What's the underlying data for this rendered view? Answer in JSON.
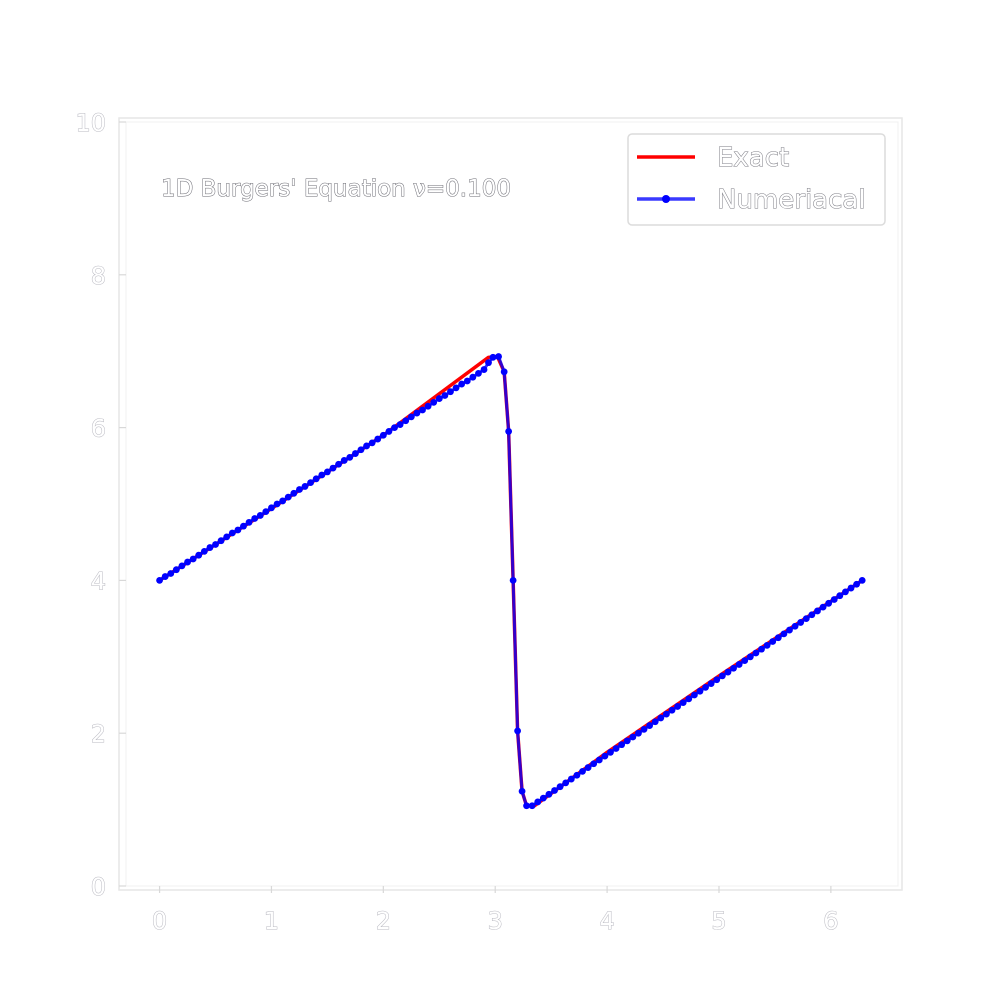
{
  "chart_data": {
    "type": "line",
    "title": "",
    "xlabel": "",
    "ylabel": "",
    "annotation": "1D Burgers' Equation ν=0.100",
    "xlim": [
      -0.3,
      6.6
    ],
    "ylim": [
      0,
      10
    ],
    "x_ticks": [
      "0",
      "1",
      "2",
      "3",
      "4",
      "5",
      "6"
    ],
    "y_ticks": [
      "0",
      "2",
      "4",
      "6",
      "8",
      "10"
    ],
    "grid": false,
    "legend": {
      "placement": "top-right",
      "entries": [
        "Exact",
        "Numeriacal"
      ]
    },
    "series": [
      {
        "name": "Exact",
        "color": "#ff0000",
        "marker": "none",
        "points": [
          [
            0.0,
            4.0
          ],
          [
            1.0,
            4.94
          ],
          [
            2.0,
            5.9
          ],
          [
            2.94,
            6.92
          ],
          [
            3.02,
            6.93
          ],
          [
            3.08,
            6.73
          ],
          [
            3.12,
            5.95
          ],
          [
            3.16,
            4.0
          ],
          [
            3.2,
            2.03
          ],
          [
            3.24,
            1.24
          ],
          [
            3.28,
            1.05
          ],
          [
            3.35,
            1.05
          ],
          [
            4.0,
            1.75
          ],
          [
            5.0,
            2.75
          ],
          [
            6.28,
            4.0
          ]
        ]
      },
      {
        "name": "Numeriacal",
        "color": "#0000ff",
        "marker": "dot",
        "points": [
          [
            0.0,
            4.0
          ],
          [
            0.05,
            4.05
          ],
          [
            0.1,
            4.09
          ],
          [
            0.15,
            4.14
          ],
          [
            0.2,
            4.19
          ],
          [
            0.25,
            4.24
          ],
          [
            0.3,
            4.28
          ],
          [
            0.35,
            4.33
          ],
          [
            0.4,
            4.38
          ],
          [
            0.45,
            4.43
          ],
          [
            0.5,
            4.47
          ],
          [
            0.55,
            4.52
          ],
          [
            0.6,
            4.57
          ],
          [
            0.65,
            4.62
          ],
          [
            0.7,
            4.66
          ],
          [
            0.75,
            4.71
          ],
          [
            0.8,
            4.76
          ],
          [
            0.85,
            4.81
          ],
          [
            0.9,
            4.85
          ],
          [
            0.95,
            4.9
          ],
          [
            1.0,
            4.95
          ],
          [
            1.05,
            5.0
          ],
          [
            1.1,
            5.04
          ],
          [
            1.15,
            5.09
          ],
          [
            1.2,
            5.14
          ],
          [
            1.25,
            5.19
          ],
          [
            1.3,
            5.23
          ],
          [
            1.35,
            5.28
          ],
          [
            1.4,
            5.33
          ],
          [
            1.45,
            5.38
          ],
          [
            1.5,
            5.42
          ],
          [
            1.55,
            5.47
          ],
          [
            1.6,
            5.52
          ],
          [
            1.65,
            5.57
          ],
          [
            1.7,
            5.61
          ],
          [
            1.75,
            5.66
          ],
          [
            1.8,
            5.71
          ],
          [
            1.85,
            5.76
          ],
          [
            1.9,
            5.8
          ],
          [
            1.95,
            5.85
          ],
          [
            2.0,
            5.9
          ],
          [
            2.05,
            5.95
          ],
          [
            2.1,
            6.0
          ],
          [
            2.15,
            6.04
          ],
          [
            2.2,
            6.09
          ],
          [
            2.25,
            6.14
          ],
          [
            2.3,
            6.19
          ],
          [
            2.35,
            6.23
          ],
          [
            2.4,
            6.28
          ],
          [
            2.45,
            6.33
          ],
          [
            2.5,
            6.38
          ],
          [
            2.55,
            6.42
          ],
          [
            2.6,
            6.47
          ],
          [
            2.65,
            6.52
          ],
          [
            2.7,
            6.57
          ],
          [
            2.75,
            6.61
          ],
          [
            2.8,
            6.66
          ],
          [
            2.85,
            6.71
          ],
          [
            2.9,
            6.76
          ],
          [
            2.94,
            6.85
          ],
          [
            2.98,
            6.92
          ],
          [
            3.03,
            6.93
          ],
          [
            3.08,
            6.73
          ],
          [
            3.12,
            5.95
          ],
          [
            3.16,
            4.0
          ],
          [
            3.2,
            2.03
          ],
          [
            3.24,
            1.24
          ],
          [
            3.28,
            1.05
          ],
          [
            3.33,
            1.05
          ],
          [
            3.38,
            1.1
          ],
          [
            3.43,
            1.15
          ],
          [
            3.48,
            1.2
          ],
          [
            3.53,
            1.25
          ],
          [
            3.58,
            1.3
          ],
          [
            3.63,
            1.35
          ],
          [
            3.68,
            1.4
          ],
          [
            3.73,
            1.45
          ],
          [
            3.78,
            1.5
          ],
          [
            3.83,
            1.55
          ],
          [
            3.88,
            1.6
          ],
          [
            3.93,
            1.65
          ],
          [
            3.98,
            1.7
          ],
          [
            4.03,
            1.75
          ],
          [
            4.08,
            1.8
          ],
          [
            4.13,
            1.85
          ],
          [
            4.18,
            1.9
          ],
          [
            4.23,
            1.95
          ],
          [
            4.28,
            2.0
          ],
          [
            4.33,
            2.05
          ],
          [
            4.38,
            2.1
          ],
          [
            4.43,
            2.15
          ],
          [
            4.48,
            2.2
          ],
          [
            4.53,
            2.25
          ],
          [
            4.58,
            2.3
          ],
          [
            4.63,
            2.35
          ],
          [
            4.68,
            2.4
          ],
          [
            4.73,
            2.45
          ],
          [
            4.78,
            2.5
          ],
          [
            4.83,
            2.55
          ],
          [
            4.88,
            2.6
          ],
          [
            4.93,
            2.65
          ],
          [
            4.98,
            2.7
          ],
          [
            5.03,
            2.75
          ],
          [
            5.08,
            2.8
          ],
          [
            5.13,
            2.85
          ],
          [
            5.18,
            2.9
          ],
          [
            5.23,
            2.95
          ],
          [
            5.28,
            3.0
          ],
          [
            5.33,
            3.05
          ],
          [
            5.38,
            3.1
          ],
          [
            5.43,
            3.15
          ],
          [
            5.48,
            3.2
          ],
          [
            5.53,
            3.25
          ],
          [
            5.58,
            3.3
          ],
          [
            5.63,
            3.35
          ],
          [
            5.68,
            3.4
          ],
          [
            5.73,
            3.45
          ],
          [
            5.78,
            3.5
          ],
          [
            5.83,
            3.55
          ],
          [
            5.88,
            3.6
          ],
          [
            5.93,
            3.65
          ],
          [
            5.98,
            3.7
          ],
          [
            6.03,
            3.75
          ],
          [
            6.08,
            3.8
          ],
          [
            6.13,
            3.85
          ],
          [
            6.18,
            3.9
          ],
          [
            6.23,
            3.95
          ],
          [
            6.28,
            4.0
          ]
        ]
      }
    ]
  }
}
